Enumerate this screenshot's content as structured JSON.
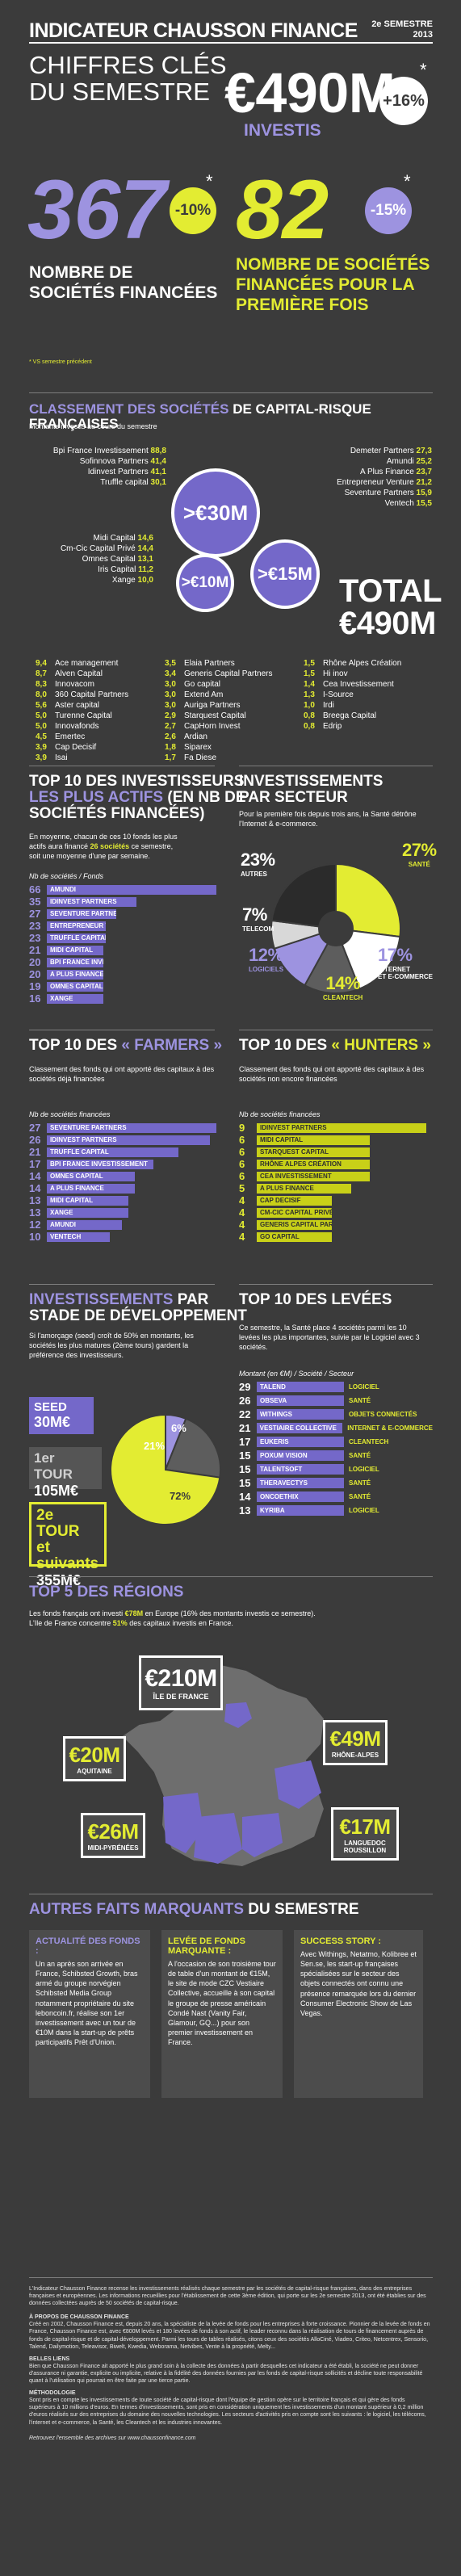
{
  "header": {
    "title": "INDICATEUR CHAUSSON FINANCE",
    "period": "2e SEMESTRE",
    "year": "2013",
    "key_figures_title_1": "CHIFFRES CLÉS",
    "key_figures_title_2": "DU SEMESTRE",
    "invested_amount": "€490M",
    "invested_label": "INVESTIS",
    "invested_change": "+16%",
    "companies_count": "367",
    "companies_change": "-10%",
    "companies_label_1": "NOMBRE DE",
    "companies_label_2": "SOCIÉTÉS FINANCÉES",
    "first_time_count": "82",
    "first_time_change": "-15%",
    "first_time_label_1": "NOMBRE DE SOCIÉTÉS",
    "first_time_label_2": "FINANCÉES POUR LA",
    "first_time_label_3": "PREMIÈRE FOIS",
    "footnote": "* VS semestre précédent"
  },
  "ranking": {
    "title_a": "CLASSEMENT DES SOCIÉTÉS",
    "title_b": " DE CAPITAL-RISQUE FRANÇAISES",
    "subtitle": "Montants investis au cours du semestre",
    "tier_30": ">€30M",
    "tier_15": ">€15M",
    "tier_10": ">€10M",
    "left_top": [
      {
        "name": "Bpi France Investissement",
        "value": "88,8"
      },
      {
        "name": "Sofinnova Partners",
        "value": "41,4"
      },
      {
        "name": "Idinvest Partners",
        "value": "41,1"
      },
      {
        "name": "Truffle capital",
        "value": "30,1"
      }
    ],
    "right_top": [
      {
        "name": "Demeter Partners",
        "value": "27,3"
      },
      {
        "name": "Amundi",
        "value": "25,2"
      },
      {
        "name": "A Plus Finance",
        "value": "23,7"
      },
      {
        "name": "Entrepreneur Venture",
        "value": "21,2"
      },
      {
        "name": "Seventure Partners",
        "value": "15,9"
      },
      {
        "name": "Ventech",
        "value": "15,5"
      }
    ],
    "left_mid": [
      {
        "name": "Midi Capital",
        "value": "14,6"
      },
      {
        "name": "Cm-Cic Capital Privé",
        "value": "14,4"
      },
      {
        "name": "Omnes Capital",
        "value": "13,1"
      },
      {
        "name": "Iris Capital",
        "value": "11,2"
      },
      {
        "name": "Xange",
        "value": "10,0"
      }
    ],
    "total_label": "TOTAL",
    "total_value": "€490M",
    "col1": [
      {
        "v": "9,4",
        "n": "Ace management"
      },
      {
        "v": "8,7",
        "n": "Alven Capital"
      },
      {
        "v": "8,3",
        "n": "Innovacom"
      },
      {
        "v": "8,0",
        "n": "360 Capital Partners"
      },
      {
        "v": "5,6",
        "n": "Aster capital"
      },
      {
        "v": "5,0",
        "n": "Turenne Capital"
      },
      {
        "v": "5,0",
        "n": "Innovafonds"
      },
      {
        "v": "4,5",
        "n": "Emertec"
      },
      {
        "v": "3,9",
        "n": "Cap Decisif"
      },
      {
        "v": "3,9",
        "n": "Isai"
      }
    ],
    "col2": [
      {
        "v": "3,5",
        "n": "Elaia Partners"
      },
      {
        "v": "3,4",
        "n": "Generis Capital Partners"
      },
      {
        "v": "3,0",
        "n": "Go capital"
      },
      {
        "v": "3,0",
        "n": "Extend Am"
      },
      {
        "v": "3,0",
        "n": "Auriga Partners"
      },
      {
        "v": "2,9",
        "n": "Starquest Capital"
      },
      {
        "v": "2,7",
        "n": "CapHorn Invest"
      },
      {
        "v": "2,6",
        "n": "Ardian"
      },
      {
        "v": "1,8",
        "n": "Siparex"
      },
      {
        "v": "1,7",
        "n": "Fa Diese"
      }
    ],
    "col3": [
      {
        "v": "1,5",
        "n": "Rhône Alpes Création"
      },
      {
        "v": "1,5",
        "n": "Hi inov"
      },
      {
        "v": "1,4",
        "n": "Cea Investissement"
      },
      {
        "v": "1,3",
        "n": "I-Source"
      },
      {
        "v": "1,0",
        "n": "Irdi"
      },
      {
        "v": "0,8",
        "n": "Breega Capital"
      },
      {
        "v": "0,8",
        "n": "Edrip"
      }
    ]
  },
  "top_active": {
    "title_1": "TOP 10 DES INVESTISSEURS",
    "title_2a": "LES PLUS ACTIFS",
    "title_2b": " (EN NB DE",
    "title_3": "SOCIÉTÉS FINANCÉES)",
    "desc_1": "En moyenne, chacun de ces 10 fonds les plus",
    "desc_2a": "actifs aura financé ",
    "desc_2b": "26 sociétés",
    "desc_2c": " ce semestre,",
    "desc_3": "soit une moyenne d'une par semaine.",
    "axis_label": "Nb de sociétés / Fonds"
  },
  "sectors": {
    "title_1": "INVESTISSEMENTS",
    "title_2": "PAR SECTEUR",
    "desc": "Pour la première fois depuis trois ans, la Santé détrône l'Internet & e-commerce.",
    "labels": {
      "autres_pct": "23%",
      "autres": "AUTRES",
      "sante_pct": "27%",
      "sante": "SANTÉ",
      "telecom_pct": "7%",
      "telecom": "TELECOM",
      "logiciels_pct": "12%",
      "logiciels": "LOGICIELS",
      "clean_pct": "14%",
      "clean": "CLEANTECH",
      "internet_pct": "17%",
      "internet_1": "INTERNET",
      "internet_2": "ET E-COMMERCE"
    }
  },
  "farmers": {
    "title_a": "TOP 10 DES ",
    "title_b": "« FARMERS »",
    "desc": "Classement des fonds qui ont apporté des capitaux à des sociétés déjà financées",
    "axis_label": "Nb de sociétés financées"
  },
  "hunters": {
    "title_a": "TOP 10 DES ",
    "title_b": "« HUNTERS »",
    "desc": "Classement des fonds qui ont apporté des capitaux à des sociétés non encore financées",
    "axis_label": "Nb de sociétés financées"
  },
  "stages": {
    "title_a": "INVESTISSEMENTS",
    "title_b": " PAR",
    "title_2": "STADE DE DÉVELOPPEMENT",
    "desc": "Si l'amorçage (seed) croît de 50% en montants, les sociétés les plus matures (2ème tours) gardent la préférence des investisseurs.",
    "seed_label": "SEED",
    "seed_value": "30M€",
    "first_label": "1er TOUR",
    "first_value": "105M€",
    "second_label_1": "2e TOUR",
    "second_label_2": "et suivants",
    "second_value": "355M€",
    "pct_seed": "6%",
    "pct_first": "21%",
    "pct_second": "72%"
  },
  "levees": {
    "title": "TOP 10 DES LEVÉES",
    "desc": "Ce semestre, la Santé place 4 sociétés parmi les 10 levées les plus importantes, suivie par le Logiciel avec 3 sociétés.",
    "axis_label": "Montant (en €M) / Société / Secteur",
    "rows": [
      {
        "v": "29",
        "n": "TALEND",
        "s": "LOGICIEL"
      },
      {
        "v": "26",
        "n": "OBSEVA",
        "s": "SANTÉ"
      },
      {
        "v": "22",
        "n": "WITHINGS",
        "s": "OBJETS CONNECTÉS"
      },
      {
        "v": "21",
        "n": "VESTIAIRE COLLECTIVE",
        "s": "INTERNET & E-COMMERCE"
      },
      {
        "v": "17",
        "n": "EUKERIS",
        "s": "CLEANTECH"
      },
      {
        "v": "15",
        "n": "POXUM VISION",
        "s": "SANTÉ"
      },
      {
        "v": "15",
        "n": "TALENTSOFT",
        "s": "LOGICIEL"
      },
      {
        "v": "15",
        "n": "THERAVECTYS",
        "s": "SANTÉ"
      },
      {
        "v": "14",
        "n": "ONCOETHIX",
        "s": "SANTÉ"
      },
      {
        "v": "13",
        "n": "KYRIBA",
        "s": "LOGICIEL"
      }
    ]
  },
  "regions": {
    "title": "TOP 5 DES RÉGIONS",
    "desc_1a": "Les fonds français ont investi ",
    "desc_1b": "€78M",
    "desc_1c": " en Europe (16% des montants investis ce semestre).",
    "desc_2a": "L'Ile de France concentre ",
    "desc_2b": "51%",
    "desc_2c": " des capitaux investis en France.",
    "idf_value": "€210M",
    "idf_name": "ÎLE DE FRANCE",
    "aq_value": "€20M",
    "aq_name": "AQUITAINE",
    "mp_value": "€26M",
    "mp_name": "MIDI-PYRÉNÉES",
    "ra_value": "€49M",
    "ra_name": "RHÔNE-ALPES",
    "lr_value": "€17M",
    "lr_name_1": "LANGUEDOC",
    "lr_name_2": "ROUSSILLON"
  },
  "highlights": {
    "title_a": "AUTRES FAITS MARQUANTS",
    "title_b": " DU SEMESTRE",
    "b1_title": "ACTUALITÉ DES FONDS :",
    "b1_text": "Un an après son arrivée en France, Schibsted Growth, bras armé du groupe norvégien Schibsted Media Group notamment propriétaire du site leboncoin.fr, réalise son 1er investissement avec un tour de €10M dans la start-up de prêts participatifs Prêt d'Union.",
    "b2_title": "LEVÉE DE FONDS MARQUANTE :",
    "b2_text": "A l'occasion de son troisième tour de table d'un montant de €15M, le site de mode CZC Vestiaire Collective, accueille à son capital le groupe de presse américain Condé Nast (Vanity Fair, Glamour, GQ...) pour son premier investissement en France.",
    "b3_title": "SUCCESS STORY :",
    "b3_text": "Avec Withings, Netatmo, Kolibree et Sen.se, les start-up françaises spécialisées sur le secteur des objets connectés ont connu une présence remarquée lors du dernier Consumer Electronic Show de Las Vegas."
  },
  "footer": {
    "p1": "L'Indicateur Chausson Finance recense les investissements réalisés chaque semestre par les sociétés de capital-risque françaises, dans des entreprises françaises et européennes. Les informations recueillies pour l'établissement de cette 3ème édition, qui porte sur les 2e semestre 2013, ont été établies sur des données collectées auprès de 50 sociétés de capital-risque.",
    "h2": "À PROPOS DE CHAUSSON FINANCE",
    "p2": "Créé en 2002, Chausson Finance est, depuis 20 ans, la spécialiste de la levée de fonds pour les entreprises à forte croissance. Pionnier de la levée de fonds en France, Chausson Finance est, avec €800M levés et 180 levées de fonds à son actif, le leader reconnu dans la réalisation de tours de financement auprès de fonds de capital-risque et de capital-développement. Parmi les tours de tables réalisés, citons ceux des sociétés AlloCiné, Viadeo, Criteo, Netcentrex, Sensorio, Talend, Dailymotion, Teleavisor, Biwelt, Kwedia, Weborama, Netvibes, Vente à la propriété, Melty...",
    "h3": "BELLES LIENS",
    "p3": "Bien que Chausson Finance ait apporté le plus grand soin à la collecte des données à partir desquelles cet indicateur a été établi, la société ne peut donner d'assurance ni garantie, explicite ou implicite, relative à la fidélité des données fournies par les fonds de capital-risque sollicités et décline toute responsabilité quant à l'utilisation qui pourrait en être faite par une tierce partie.",
    "h4": "MÉTHODOLOGIE",
    "p4": "Sont pris en compte les investissements de toute société de capital-risque dont l'équipe de gestion opère sur le territoire français et qui gère des fonds supérieurs à 10 millions d'euros. En termes d'investissements, sont pris en considération uniquement les investissements d'un montant supérieur à 0,2 million d'euros réalisés sur des entreprises du domaine des nouvelles technologies. Les secteurs d'activités pris en compte sont les suivants : le logiciel, les télécoms, l'internet et e-commerce, la Santé, les Cleantech et les industries innovantes.",
    "p5": "Retrouvez l'ensemble des archives sur www.chaussonfinance.com"
  },
  "chart_data": [
    {
      "type": "bar",
      "title": "TOP 10 DES INVESTISSEURS LES PLUS ACTIFS",
      "categories": [
        "AMUNDI",
        "IDINVEST PARTNERS",
        "SEVENTURE PARTNERS",
        "ENTREPRENEUR VENTURE",
        "TRUFFLE CAPITAL",
        "MIDI CAPITAL",
        "BPI FRANCE INVESTISSEMENT",
        "A PLUS FINANCE",
        "OMNES CAPITAL",
        "XANGE"
      ],
      "values": [
        66,
        35,
        27,
        23,
        23,
        21,
        20,
        20,
        19,
        16
      ],
      "xlabel": "Nb de sociétés / Fonds"
    },
    {
      "type": "pie",
      "title": "INVESTISSEMENTS PAR SECTEUR",
      "categories": [
        "SANTÉ",
        "INTERNET ET E-COMMERCE",
        "CLEANTECH",
        "LOGICIELS",
        "TELECOM",
        "AUTRES"
      ],
      "values": [
        27,
        17,
        14,
        12,
        7,
        23
      ],
      "colors": [
        "#e3ec32",
        "#ffffff",
        "#5d5d5d",
        "#9d93e0",
        "#d8d8d8",
        "#2b2b2b"
      ]
    },
    {
      "type": "bar",
      "title": "TOP 10 DES « FARMERS »",
      "categories": [
        "SEVENTURE PARTNERS",
        "IDINVEST PARTNERS",
        "TRUFFLE CAPITAL",
        "BPI FRANCE INVESTISSEMENT",
        "OMNES CAPITAL",
        "A PLUS FINANCE",
        "MIDI CAPITAL",
        "XANGE",
        "AMUNDI",
        "VENTECH"
      ],
      "values": [
        27,
        26,
        21,
        17,
        14,
        14,
        13,
        13,
        12,
        10
      ],
      "xlabel": "Nb de sociétés financées"
    },
    {
      "type": "bar",
      "title": "TOP 10 DES « HUNTERS »",
      "categories": [
        "IDINVEST PARTNERS",
        "MIDI CAPITAL",
        "STARQUEST CAPITAL",
        "RHÔNE ALPES CRÉATION",
        "CEA INVESTISSEMENT",
        "A PLUS FINANCE",
        "CAP DECISIF",
        "CM-CIC CAPITAL PRIVÉ",
        "GENERIS CAPITAL PARTNERS",
        "GO CAPITAL"
      ],
      "values": [
        9,
        6,
        6,
        6,
        6,
        5,
        4,
        4,
        4,
        4
      ],
      "xlabel": "Nb de sociétés financées"
    },
    {
      "type": "pie",
      "title": "INVESTISSEMENTS PAR STADE DE DÉVELOPPEMENT",
      "categories": [
        "SEED",
        "1er TOUR",
        "2e TOUR et suivants"
      ],
      "values": [
        6,
        21,
        72
      ],
      "colors": [
        "#9d93e0",
        "#5d5d5d",
        "#e3ec32"
      ]
    },
    {
      "type": "table",
      "title": "TOP 10 DES LEVÉES",
      "columns": [
        "Montant (en €M)",
        "Société",
        "Secteur"
      ]
    }
  ]
}
